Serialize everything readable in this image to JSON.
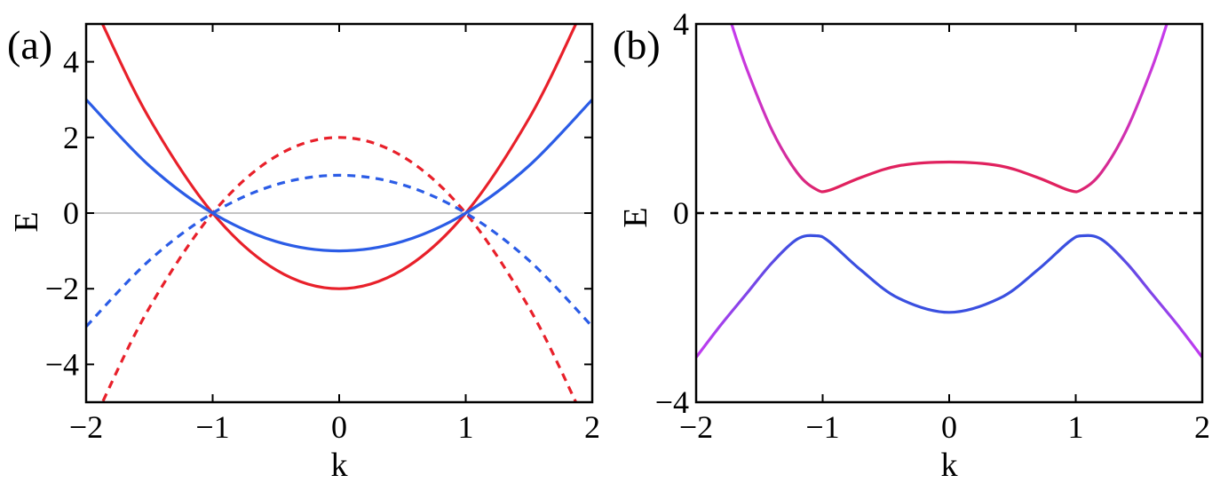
{
  "chart_data": [
    {
      "panel_label": "(a)",
      "type": "line",
      "xlabel": "k",
      "ylabel": "E",
      "xlim": [
        -2,
        2
      ],
      "ylim": [
        -5,
        5
      ],
      "xticks": [
        -2,
        -1,
        0,
        1,
        2
      ],
      "xtick_labels": [
        "−2",
        "−1",
        "0",
        "1",
        "2"
      ],
      "yticks": [
        -4,
        -2,
        0,
        2,
        4
      ],
      "ytick_labels": [
        "−4",
        "−2",
        "0",
        "2",
        "4"
      ],
      "zero_line": "solid-gray",
      "grid": false,
      "series": [
        {
          "color": "#e8202a",
          "style": "solid",
          "x": [
            -2,
            -1.875,
            -1.5,
            -1,
            -0.5,
            0,
            0.5,
            1,
            1.5,
            1.875,
            2
          ],
          "y": [
            6,
            5.03,
            2.5,
            0,
            -1.5,
            -2,
            -1.5,
            0,
            2.5,
            5.03,
            6
          ]
        },
        {
          "color": "#e8202a",
          "style": "dashed",
          "x": [
            -2,
            -1.875,
            -1.5,
            -1,
            -0.5,
            0,
            0.5,
            1,
            1.5,
            1.875,
            2
          ],
          "y": [
            -6,
            -5.03,
            -2.5,
            0,
            1.5,
            2,
            1.5,
            0,
            -2.5,
            -5.03,
            -6
          ]
        },
        {
          "color": "#2b5ce6",
          "style": "solid",
          "x": [
            -2,
            -1.5,
            -1,
            -0.5,
            0,
            0.5,
            1,
            1.5,
            2
          ],
          "y": [
            3,
            1.25,
            0,
            -0.75,
            -1,
            -0.75,
            0,
            1.25,
            3
          ]
        },
        {
          "color": "#2b5ce6",
          "style": "dashed",
          "x": [
            -2,
            -1.5,
            -1,
            -0.5,
            0,
            0.5,
            1,
            1.5,
            2
          ],
          "y": [
            -3,
            -1.25,
            0,
            0.75,
            1,
            0.75,
            0,
            -1.25,
            -3
          ]
        }
      ]
    },
    {
      "panel_label": "(b)",
      "type": "line",
      "xlabel": "k",
      "ylabel": "E",
      "xlim": [
        -2,
        2
      ],
      "ylim": [
        -4,
        4
      ],
      "xticks": [
        -2,
        -1,
        0,
        1,
        2
      ],
      "xtick_labels": [
        "−2",
        "−1",
        "0",
        "1",
        "2"
      ],
      "yticks": [
        -4,
        0,
        4
      ],
      "ytick_labels": [
        "−4",
        "0",
        "4"
      ],
      "zero_line": "dashed-black",
      "grid": false,
      "series": [
        {
          "color_gradient": [
            "#e0215e",
            "#c43bf0"
          ],
          "style": "solid",
          "x": [
            -1.72,
            -1.6,
            -1.4,
            -1.2,
            -1.05,
            -0.95,
            -0.7,
            -0.4,
            0,
            0.4,
            0.7,
            0.95,
            1.05,
            1.2,
            1.4,
            1.6,
            1.72
          ],
          "y": [
            4.0,
            3.05,
            1.75,
            0.85,
            0.5,
            0.48,
            0.75,
            1.0,
            1.08,
            1.0,
            0.75,
            0.48,
            0.5,
            0.85,
            1.75,
            3.05,
            4.0
          ]
        },
        {
          "color_gradient": [
            "#3a4fe0",
            "#c43bf0"
          ],
          "style": "solid",
          "x": [
            -2,
            -1.8,
            -1.6,
            -1.4,
            -1.2,
            -1.05,
            -0.95,
            -0.7,
            -0.4,
            0,
            0.4,
            0.7,
            0.95,
            1.05,
            1.2,
            1.4,
            1.6,
            1.8,
            2
          ],
          "y": [
            -3.05,
            -2.35,
            -1.7,
            -1.05,
            -0.55,
            -0.48,
            -0.6,
            -1.2,
            -1.8,
            -2.1,
            -1.8,
            -1.2,
            -0.6,
            -0.48,
            -0.55,
            -1.05,
            -1.7,
            -2.35,
            -3.05
          ]
        }
      ]
    }
  ]
}
